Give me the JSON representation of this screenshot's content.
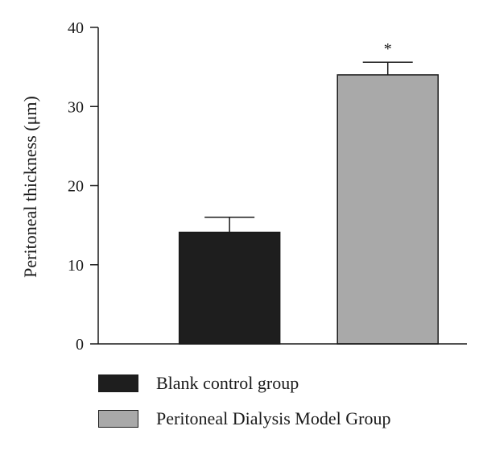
{
  "chart_data": {
    "type": "bar",
    "categories": [
      "Blank control group",
      "Peritoneal Dialysis Model Group"
    ],
    "values": [
      14.1,
      34.0
    ],
    "error": [
      1.9,
      1.6
    ],
    "significance": [
      "",
      "*"
    ],
    "colors": [
      "#1e1e1e",
      "#a9a9a9"
    ],
    "title": "",
    "xlabel": "",
    "ylabel": "Peritoneal thickness (μm)",
    "ylim": [
      0,
      40
    ],
    "yticks": [
      "0",
      "10",
      "20",
      "30",
      "40"
    ],
    "grid": false,
    "legend_position": "bottom"
  },
  "legend": {
    "items": [
      {
        "label": "Blank control group",
        "color": "#1e1e1e"
      },
      {
        "label": "Peritoneal Dialysis Model Group",
        "color": "#a9a9a9"
      }
    ]
  }
}
